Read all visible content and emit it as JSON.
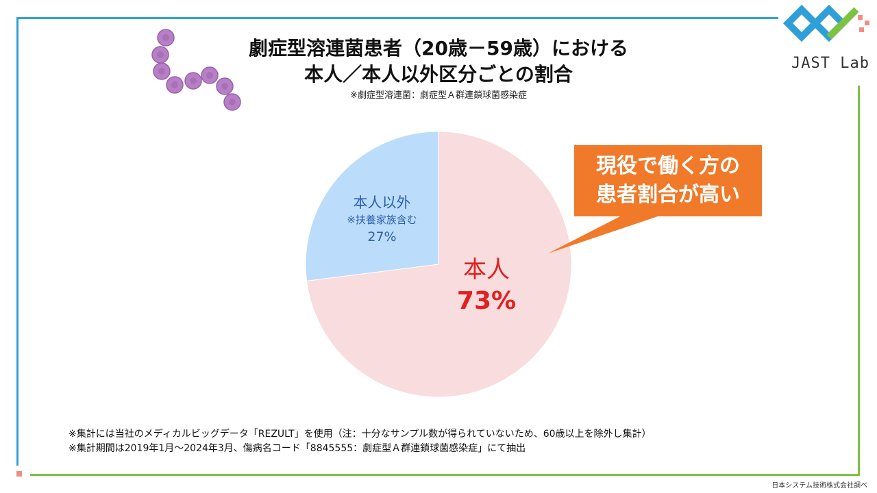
{
  "title": {
    "line1": "劇症型溶連菌患者（20歳－59歳）における",
    "line2": "本人／本人以外区分ごとの割合"
  },
  "subtitle": "※劇症型溶連菌：劇症型Ａ群連鎖球菌感染症",
  "callout": {
    "line1": "現役で働く方の",
    "line2": "患者割合が高い"
  },
  "chart_data": {
    "type": "pie",
    "slices": [
      {
        "label": "本人",
        "value": 73,
        "percent_label": "73%",
        "color": "#f9dcdd",
        "label_color": "#e02020"
      },
      {
        "label": "本人以外",
        "note": "※扶養家族含む",
        "value": 27,
        "percent_label": "27%",
        "color": "#bcdcfb",
        "label_color": "#2a5fa8"
      }
    ]
  },
  "notes": {
    "line1": "※集計には当社のメディカルビッグデータ「REZULT」を使用（注：十分なサンプル数が得られていないため、60歳以上を除外し集計）",
    "line2": "※集計期間は2019年1月～2024年3月、傷病名コード「8845555：劇症型Ａ群連鎖球菌感染症」にて抽出"
  },
  "credit": "日本システム技術株式会社調べ",
  "logo": {
    "text": "JAST Lab",
    "colors": {
      "blue": "#2e9fd8",
      "green": "#7cc243",
      "red": "#f08e85"
    }
  },
  "colors": {
    "frame_blue": "#2e9fd8",
    "frame_green": "#7cc243",
    "callout": "#f07a2a"
  }
}
